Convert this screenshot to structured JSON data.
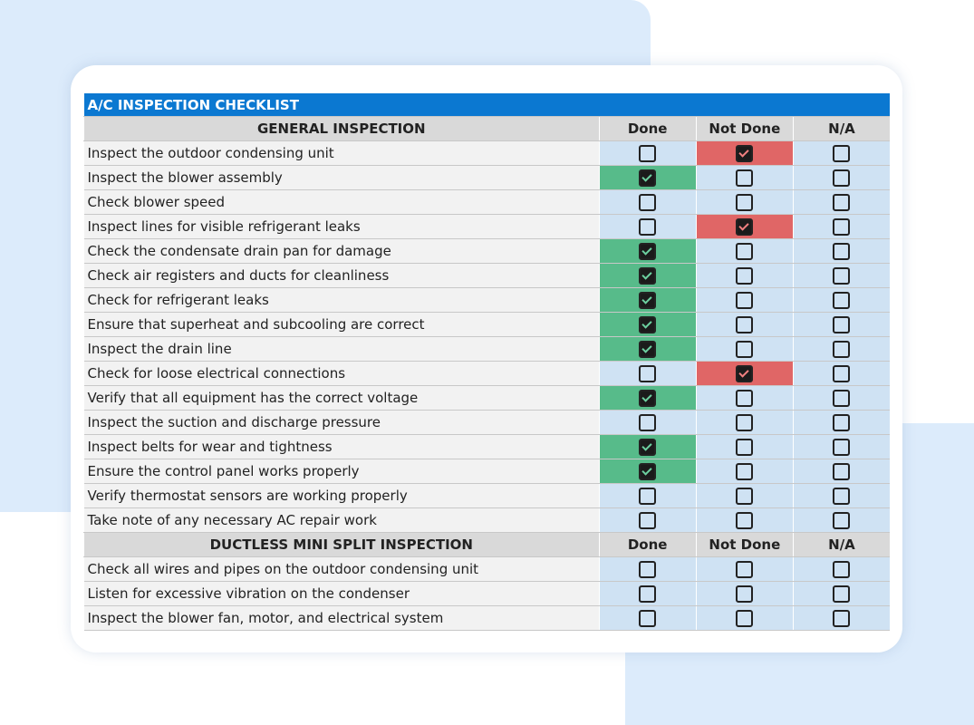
{
  "title": "A/C INSPECTION CHECKLIST",
  "columns": [
    "Done",
    "Not Done",
    "N/A"
  ],
  "colors": {
    "header": "#0b78d1",
    "done": "#57bb8a",
    "not_done": "#e06666",
    "cell": "#cfe2f3"
  },
  "sections": [
    {
      "heading": "GENERAL INSPECTION",
      "items": [
        {
          "task": "Inspect the outdoor condensing unit",
          "status": "Not Done"
        },
        {
          "task": "Inspect the blower assembly",
          "status": "Done"
        },
        {
          "task": "Check blower speed",
          "status": ""
        },
        {
          "task": "Inspect lines for visible refrigerant leaks",
          "status": "Not Done"
        },
        {
          "task": "Check the condensate drain pan for damage",
          "status": "Done"
        },
        {
          "task": "Check air registers and ducts for cleanliness",
          "status": "Done"
        },
        {
          "task": "Check for refrigerant leaks",
          "status": "Done"
        },
        {
          "task": "Ensure that superheat and subcooling are correct",
          "status": "Done"
        },
        {
          "task": "Inspect the drain line",
          "status": "Done"
        },
        {
          "task": "Check for loose electrical connections",
          "status": "Not Done"
        },
        {
          "task": "Verify that all equipment has the correct voltage",
          "status": "Done"
        },
        {
          "task": "Inspect the suction and discharge pressure",
          "status": ""
        },
        {
          "task": "Inspect belts for wear and tightness",
          "status": "Done"
        },
        {
          "task": "Ensure the control panel works properly",
          "status": "Done"
        },
        {
          "task": "Verify thermostat sensors are working properly",
          "status": ""
        },
        {
          "task": "Take note of any necessary AC repair work",
          "status": ""
        }
      ]
    },
    {
      "heading": "DUCTLESS MINI SPLIT INSPECTION",
      "items": [
        {
          "task": "Check all wires and pipes on the outdoor condensing unit",
          "status": ""
        },
        {
          "task": "Listen for excessive vibration on the condenser",
          "status": ""
        },
        {
          "task": "Inspect the blower fan, motor, and electrical system",
          "status": ""
        }
      ]
    }
  ]
}
